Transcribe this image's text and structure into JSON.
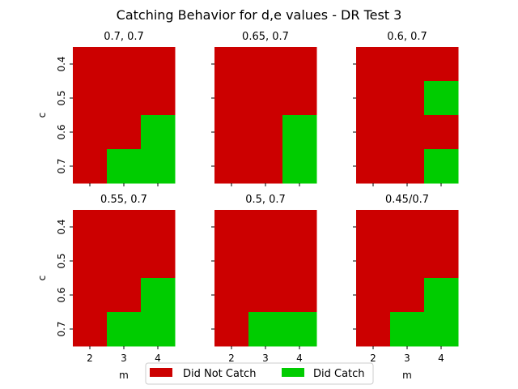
{
  "chart_data": {
    "type": "heatmap",
    "title": "Catching Behavior for d,e values - DR Test 3",
    "x_categories": [
      "2",
      "3",
      "4"
    ],
    "y_categories": [
      "0.4",
      "0.5",
      "0.6",
      "0.7"
    ],
    "xlabel": "m",
    "ylabel": "c",
    "legend_position": "bottom-center",
    "colors": {
      "not_catch": "#cc0000",
      "catch": "#00cc00"
    },
    "legend": [
      {
        "label": "Did Not Catch",
        "color": "#cc0000"
      },
      {
        "label": "Did Catch",
        "color": "#00cc00"
      }
    ],
    "panels": [
      {
        "title": "0.7, 0.7",
        "grid": [
          [
            0,
            0,
            0
          ],
          [
            0,
            0,
            0
          ],
          [
            0,
            0,
            1
          ],
          [
            0,
            1,
            1
          ]
        ]
      },
      {
        "title": "0.65, 0.7",
        "grid": [
          [
            0,
            0,
            0
          ],
          [
            0,
            0,
            0
          ],
          [
            0,
            0,
            1
          ],
          [
            0,
            0,
            1
          ]
        ]
      },
      {
        "title": "0.6, 0.7",
        "grid": [
          [
            0,
            0,
            0
          ],
          [
            0,
            0,
            1
          ],
          [
            0,
            0,
            0
          ],
          [
            0,
            0,
            1
          ]
        ]
      },
      {
        "title": "0.55, 0.7",
        "grid": [
          [
            0,
            0,
            0
          ],
          [
            0,
            0,
            0
          ],
          [
            0,
            0,
            1
          ],
          [
            0,
            1,
            1
          ]
        ]
      },
      {
        "title": "0.5, 0.7",
        "grid": [
          [
            0,
            0,
            0
          ],
          [
            0,
            0,
            0
          ],
          [
            0,
            0,
            0
          ],
          [
            0,
            1,
            1
          ]
        ]
      },
      {
        "title": "0.45/0.7",
        "grid": [
          [
            0,
            0,
            0
          ],
          [
            0,
            0,
            0
          ],
          [
            0,
            0,
            1
          ],
          [
            0,
            1,
            1
          ]
        ]
      }
    ]
  }
}
